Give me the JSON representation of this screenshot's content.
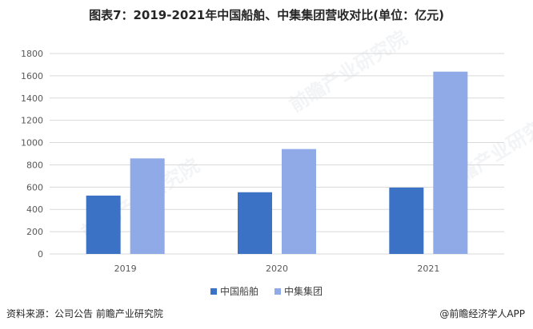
{
  "title": "图表7：2019-2021年中国船舶、中集集团营收对比(单位：亿元)",
  "watermark_text": "前瞻产业研究院",
  "footer": {
    "source": "资料来源：公司公告 前瞻产业研究院",
    "brand": "@前瞻经济学人APP"
  },
  "colors": {
    "series1": "#3b72c5",
    "series2": "#8faae6",
    "grid": "#d9d9d9",
    "axis_text": "#595959"
  },
  "chart_data": {
    "type": "bar",
    "title": "图表7：2019-2021年中国船舶、中集集团营收对比(单位：亿元)",
    "categories": [
      "2019",
      "2020",
      "2021"
    ],
    "series": [
      {
        "name": "中国船舶",
        "values": [
          524,
          554,
          596
        ]
      },
      {
        "name": "中集集团",
        "values": [
          858,
          942,
          1637
        ]
      }
    ],
    "ylim": [
      0,
      1800
    ],
    "yticks": [
      0,
      200,
      400,
      600,
      800,
      1000,
      1200,
      1400,
      1600,
      1800
    ],
    "grid": true,
    "legend_position": "bottom",
    "xlabel": "",
    "ylabel": ""
  }
}
